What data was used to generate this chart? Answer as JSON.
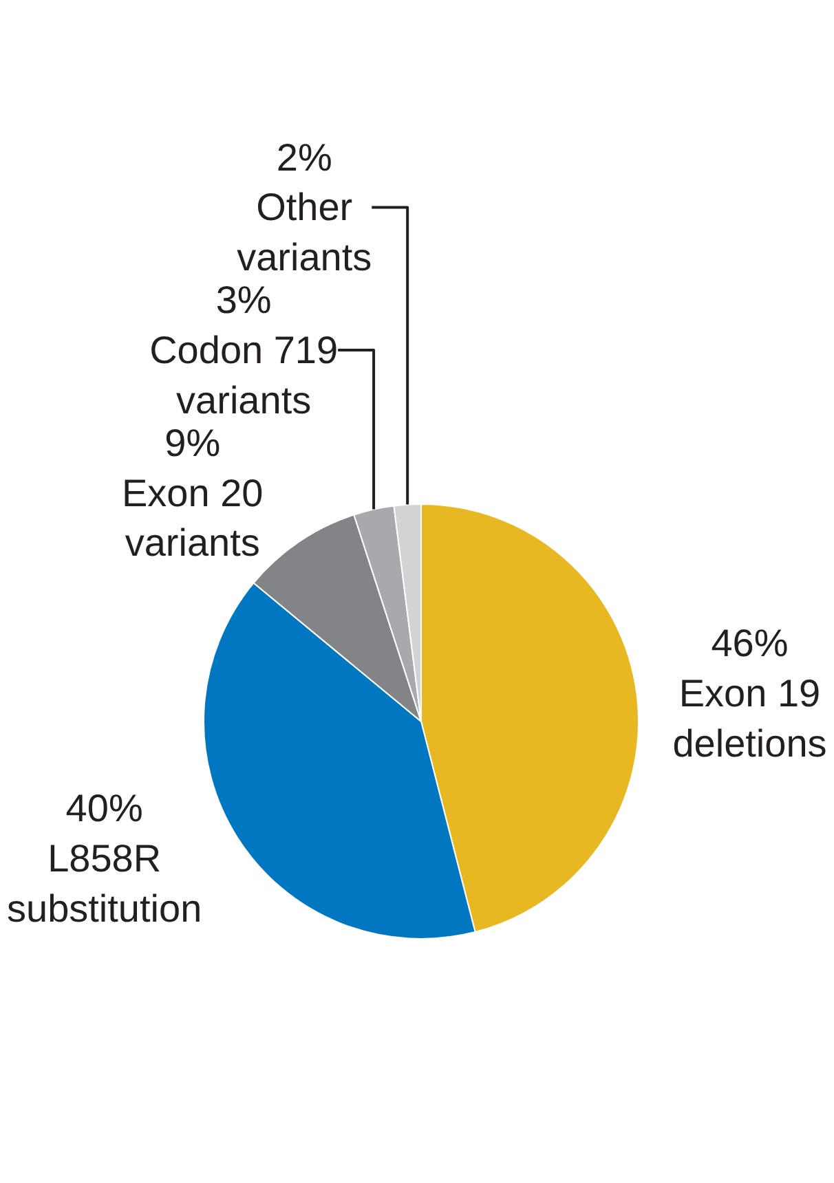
{
  "chart_data": {
    "type": "pie",
    "categories": [
      "Exon 19\ndeletions",
      "L858R\nsubstitution",
      "Exon 20\nvariants",
      "Codon 719\nvariants",
      "Other\nvariants"
    ],
    "values": [
      46,
      40,
      9,
      3,
      2
    ],
    "colors": [
      "#e8b822",
      "#0077c0",
      "#838487",
      "#a7a9ac",
      "#d1d3d4"
    ],
    "value_labels": [
      "46%",
      "40%",
      "9%",
      "3%",
      "2%"
    ],
    "legend": false
  }
}
